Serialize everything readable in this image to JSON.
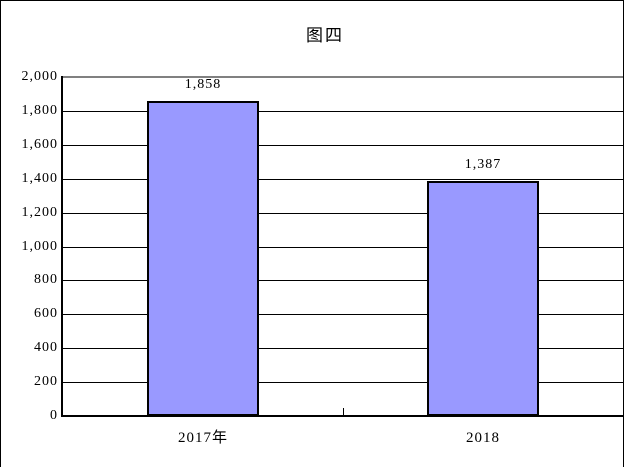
{
  "chart_data": {
    "type": "bar",
    "title": "图四",
    "categories": [
      "2017年",
      "2018"
    ],
    "values": [
      1858,
      1387
    ],
    "data_labels": [
      "1,858",
      "1,387"
    ],
    "series": [
      {
        "name": "",
        "values": [
          1858,
          1387
        ]
      }
    ],
    "xlabel": "",
    "ylabel": "",
    "ylim": [
      0,
      2000
    ],
    "y_tick_step": 200,
    "y_ticks": [
      {
        "value": 0,
        "label": "0"
      },
      {
        "value": 200,
        "label": "200"
      },
      {
        "value": 400,
        "label": "400"
      },
      {
        "value": 600,
        "label": "600"
      },
      {
        "value": 800,
        "label": "800"
      },
      {
        "value": 1000,
        "label": "1,000"
      },
      {
        "value": 1200,
        "label": "1,200"
      },
      {
        "value": 1400,
        "label": "1,400"
      },
      {
        "value": 1600,
        "label": "1,600"
      },
      {
        "value": 1800,
        "label": "1,800"
      },
      {
        "value": 2000,
        "label": "2,000"
      }
    ],
    "grid": "horizontal-major",
    "legend": "none",
    "colors": {
      "bar_fill": "#9999FF",
      "bar_border": "#000000",
      "gridline": "#000000",
      "plot_top_border": "#808080",
      "chart_border": "#000000",
      "background": "#FFFFFF"
    }
  }
}
